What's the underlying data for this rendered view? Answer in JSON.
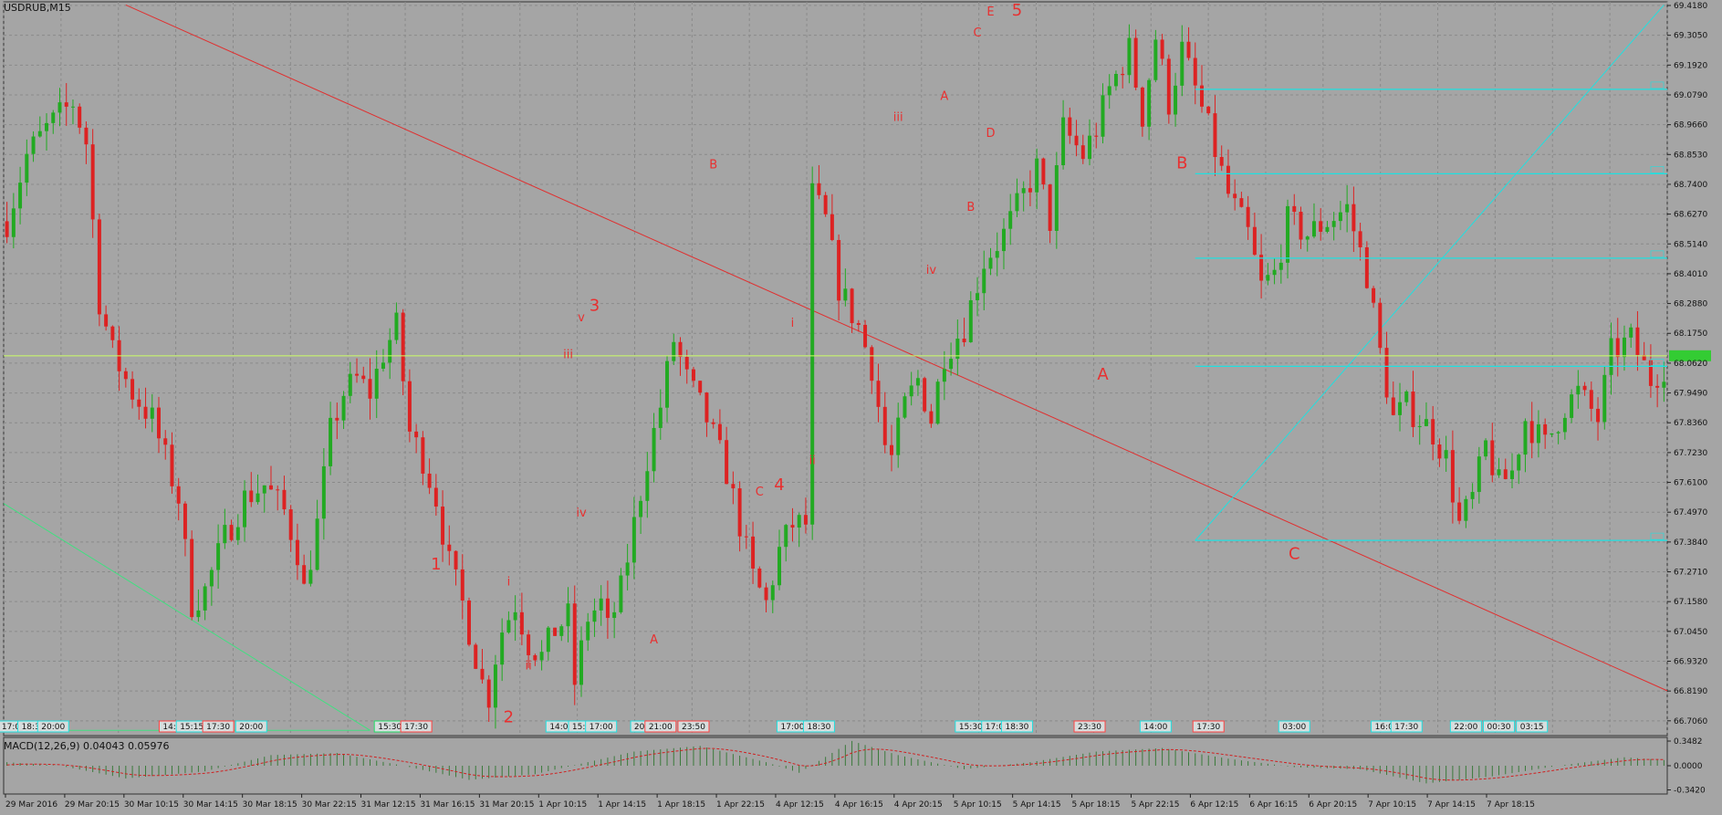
{
  "window": {
    "symbol_label": "USDRUB,M15",
    "indicator_label": "MACD(12,26,9) 0.04043 0.05976"
  },
  "colors": {
    "background": "#a5a5a5",
    "grid": "#8a8a8a",
    "bull": "#22aa22",
    "bear": "#dd2222",
    "trendline": "#e03030",
    "channel": "#20e0e0",
    "support": "#40e080",
    "bid_line": "#ccff66",
    "price_tag": "#33cc33",
    "wave_label": "#e83030"
  },
  "chart_data": [
    {
      "type": "candlestick",
      "title": "USDRUB,M15",
      "ylim": [
        66.65,
        69.418
      ],
      "y_ticks": [
        "69.4180",
        "69.3050",
        "69.1920",
        "69.0790",
        "68.9660",
        "68.8530",
        "68.7400",
        "68.6270",
        "68.5140",
        "68.4010",
        "68.2880",
        "68.1750",
        "68.0620",
        "67.9490",
        "67.8360",
        "67.7230",
        "67.6100",
        "67.4970",
        "67.3840",
        "67.2710",
        "67.1580",
        "67.0450",
        "66.9320",
        "66.8190",
        "66.7060"
      ],
      "x_ticks": [
        "29 Mar 2016",
        "29 Mar 20:15",
        "30 Mar 10:15",
        "30 Mar 14:15",
        "30 Mar 18:15",
        "30 Mar 22:15",
        "31 Mar 12:15",
        "31 Mar 16:15",
        "31 Mar 20:15",
        "1 Apr 10:15",
        "1 Apr 14:15",
        "1 Apr 18:15",
        "1 Apr 22:15",
        "4 Apr 12:15",
        "4 Apr 16:15",
        "4 Apr 20:15",
        "5 Apr 10:15",
        "5 Apr 14:15",
        "5 Apr 18:15",
        "5 Apr 22:15",
        "6 Apr 12:15",
        "6 Apr 16:15",
        "6 Apr 20:15",
        "7 Apr 10:15",
        "7 Apr 14:15",
        "7 Apr 18:15"
      ],
      "current_price": 68.09,
      "price_path": [
        [
          0,
          68.6
        ],
        [
          3,
          68.85
        ],
        [
          6,
          68.95
        ],
        [
          10,
          69.05
        ],
        [
          12,
          68.9
        ],
        [
          14,
          68.3
        ],
        [
          16,
          68.1
        ],
        [
          19,
          67.95
        ],
        [
          22,
          67.85
        ],
        [
          26,
          67.55
        ],
        [
          28,
          67.15
        ],
        [
          30,
          67.2
        ],
        [
          33,
          67.4
        ],
        [
          36,
          67.55
        ],
        [
          39,
          67.6
        ],
        [
          42,
          67.5
        ],
        [
          44,
          67.35
        ],
        [
          45,
          67.2
        ],
        [
          47,
          67.45
        ],
        [
          49,
          67.8
        ],
        [
          51,
          67.95
        ],
        [
          53,
          68.0
        ],
        [
          55,
          67.95
        ],
        [
          57,
          68.1
        ],
        [
          59,
          68.2
        ],
        [
          60,
          68.0
        ],
        [
          61,
          67.8
        ],
        [
          63,
          67.7
        ],
        [
          65,
          67.55
        ],
        [
          67,
          67.3
        ],
        [
          69,
          67.15
        ],
        [
          71,
          66.95
        ],
        [
          72,
          66.85
        ],
        [
          73,
          66.8
        ],
        [
          74,
          66.95
        ],
        [
          75,
          67.05
        ],
        [
          77,
          67.15
        ],
        [
          79,
          67.0
        ],
        [
          81,
          66.95
        ],
        [
          83,
          67.05
        ],
        [
          85,
          67.1
        ],
        [
          86,
          66.85
        ],
        [
          88,
          67.1
        ],
        [
          90,
          67.15
        ],
        [
          91,
          67.05
        ],
        [
          93,
          67.2
        ],
        [
          95,
          67.45
        ],
        [
          97,
          67.7
        ],
        [
          99,
          67.9
        ],
        [
          101,
          68.15
        ],
        [
          103,
          68.0
        ],
        [
          106,
          67.85
        ],
        [
          109,
          67.65
        ],
        [
          111,
          67.45
        ],
        [
          113,
          67.25
        ],
        [
          115,
          67.15
        ],
        [
          117,
          67.35
        ],
        [
          119,
          67.45
        ],
        [
          121,
          67.45
        ],
        [
          122,
          68.7
        ],
        [
          124,
          68.6
        ],
        [
          126,
          68.35
        ],
        [
          129,
          68.2
        ],
        [
          131,
          68.05
        ],
        [
          133,
          67.75
        ],
        [
          134,
          67.7
        ],
        [
          136,
          67.9
        ],
        [
          138,
          68.0
        ],
        [
          140,
          67.85
        ],
        [
          142,
          68.1
        ],
        [
          145,
          68.2
        ],
        [
          148,
          68.45
        ],
        [
          151,
          68.55
        ],
        [
          154,
          68.7
        ],
        [
          156,
          68.8
        ],
        [
          158,
          68.6
        ],
        [
          160,
          68.95
        ],
        [
          163,
          68.85
        ],
        [
          165,
          68.95
        ],
        [
          167,
          69.1
        ],
        [
          170,
          69.25
        ],
        [
          172,
          69.0
        ],
        [
          174,
          69.3
        ],
        [
          176,
          69.05
        ],
        [
          178,
          69.25
        ],
        [
          180,
          69.1
        ],
        [
          182,
          68.95
        ],
        [
          185,
          68.7
        ],
        [
          188,
          68.55
        ],
        [
          190,
          68.35
        ],
        [
          192,
          68.4
        ],
        [
          194,
          68.6
        ],
        [
          197,
          68.55
        ],
        [
          200,
          68.6
        ],
        [
          203,
          68.65
        ],
        [
          206,
          68.4
        ],
        [
          208,
          68.1
        ],
        [
          210,
          67.85
        ],
        [
          212,
          67.9
        ],
        [
          214,
          67.85
        ],
        [
          216,
          67.8
        ],
        [
          218,
          67.7
        ],
        [
          220,
          67.45
        ],
        [
          222,
          67.55
        ],
        [
          224,
          67.75
        ],
        [
          226,
          67.6
        ],
        [
          228,
          67.65
        ],
        [
          230,
          67.85
        ],
        [
          233,
          67.75
        ],
        [
          236,
          67.9
        ],
        [
          238,
          67.95
        ],
        [
          241,
          67.85
        ],
        [
          243,
          68.1
        ],
        [
          246,
          68.15
        ],
        [
          249,
          68.0
        ],
        [
          251,
          68.05
        ]
      ],
      "n_bars": 252
    },
    {
      "type": "macd",
      "title": "MACD(12,26,9) 0.04043 0.05976",
      "ylim": [
        -0.4,
        0.4
      ],
      "y_ticks": [
        "0.3482",
        "0.0000",
        "-0.3420"
      ],
      "bump_path": [
        [
          0,
          0.05
        ],
        [
          8,
          0.0
        ],
        [
          18,
          -0.18
        ],
        [
          30,
          -0.08
        ],
        [
          40,
          0.15
        ],
        [
          50,
          0.18
        ],
        [
          60,
          0.0
        ],
        [
          70,
          -0.2
        ],
        [
          80,
          -0.12
        ],
        [
          95,
          0.2
        ],
        [
          105,
          0.28
        ],
        [
          115,
          0.05
        ],
        [
          120,
          -0.1
        ],
        [
          128,
          0.35
        ],
        [
          135,
          0.15
        ],
        [
          145,
          -0.05
        ],
        [
          155,
          0.05
        ],
        [
          165,
          0.2
        ],
        [
          175,
          0.25
        ],
        [
          185,
          0.1
        ],
        [
          195,
          -0.02
        ],
        [
          205,
          -0.05
        ],
        [
          215,
          -0.25
        ],
        [
          225,
          -0.15
        ],
        [
          235,
          0.0
        ],
        [
          245,
          0.12
        ],
        [
          251,
          0.08
        ]
      ]
    }
  ],
  "time_tags": [
    {
      "text": "17:00",
      "color": "cyan",
      "bar": 1
    },
    {
      "text": "18:30",
      "color": "cyan",
      "bar": 4
    },
    {
      "text": "20:00",
      "color": "cyan",
      "bar": 7
    },
    {
      "text": "14:0",
      "color": "red",
      "bar": 25
    },
    {
      "text": "15:15",
      "color": "cyan",
      "bar": 28
    },
    {
      "text": "17:30",
      "color": "red",
      "bar": 32
    },
    {
      "text": "20:00",
      "color": "cyan",
      "bar": 37
    },
    {
      "text": "15:30",
      "color": "green",
      "bar": 58
    },
    {
      "text": "17:30",
      "color": "red",
      "bar": 62
    },
    {
      "text": "14:00",
      "color": "cyan",
      "bar": 84
    },
    {
      "text": "15:3",
      "color": "cyan",
      "bar": 87
    },
    {
      "text": "17:00",
      "color": "cyan",
      "bar": 90
    },
    {
      "text": "20:",
      "color": "cyan",
      "bar": 96
    },
    {
      "text": "21:00",
      "color": "red",
      "bar": 99
    },
    {
      "text": "23:50",
      "color": "red",
      "bar": 104
    },
    {
      "text": "17:00",
      "color": "cyan",
      "bar": 119
    },
    {
      "text": "18:30",
      "color": "cyan",
      "bar": 123
    },
    {
      "text": "15:30",
      "color": "cyan",
      "bar": 146
    },
    {
      "text": "17:00",
      "color": "cyan",
      "bar": 150
    },
    {
      "text": "18:30",
      "color": "cyan",
      "bar": 153
    },
    {
      "text": "23:30",
      "color": "red",
      "bar": 164
    },
    {
      "text": "14:00",
      "color": "cyan",
      "bar": 174
    },
    {
      "text": "17:30",
      "color": "red",
      "bar": 182
    },
    {
      "text": "03:00",
      "color": "cyan",
      "bar": 195
    },
    {
      "text": "16:00",
      "color": "cyan",
      "bar": 209
    },
    {
      "text": "17:30",
      "color": "cyan",
      "bar": 212
    },
    {
      "text": "22:00",
      "color": "cyan",
      "bar": 221
    },
    {
      "text": "00:30",
      "color": "cyan",
      "bar": 226
    },
    {
      "text": "03:15",
      "color": "cyan",
      "bar": 231
    }
  ],
  "wave_labels": [
    {
      "text": "1",
      "bar": 65,
      "price": 67.28,
      "big": true
    },
    {
      "text": "2",
      "bar": 76,
      "price": 66.7,
      "big": true
    },
    {
      "text": "3",
      "bar": 89,
      "price": 68.26,
      "big": true
    },
    {
      "text": "4",
      "bar": 117,
      "price": 67.58,
      "big": true
    },
    {
      "text": "5",
      "bar": 153,
      "price": 69.38,
      "big": true
    },
    {
      "text": "i",
      "bar": 76,
      "price": 67.22,
      "big": false
    },
    {
      "text": "ii",
      "bar": 79,
      "price": 66.9,
      "big": false
    },
    {
      "text": "iii",
      "bar": 85,
      "price": 68.08,
      "big": false
    },
    {
      "text": "iv",
      "bar": 87,
      "price": 67.48,
      "big": false
    },
    {
      "text": "v",
      "bar": 87,
      "price": 68.22,
      "big": false
    },
    {
      "text": "i",
      "bar": 119,
      "price": 68.2,
      "big": false
    },
    {
      "text": "ii",
      "bar": 122,
      "price": 67.68,
      "big": false
    },
    {
      "text": "iii",
      "bar": 135,
      "price": 68.98,
      "big": false
    },
    {
      "text": "iv",
      "bar": 140,
      "price": 68.4,
      "big": false
    },
    {
      "text": "A",
      "bar": 98,
      "price": 67.0,
      "big": false
    },
    {
      "text": "B",
      "bar": 107,
      "price": 68.8,
      "big": false
    },
    {
      "text": "C",
      "bar": 114,
      "price": 67.56,
      "big": false
    },
    {
      "text": "A",
      "bar": 142,
      "price": 69.06,
      "big": false
    },
    {
      "text": "B",
      "bar": 146,
      "price": 68.64,
      "big": false
    },
    {
      "text": "C",
      "bar": 147,
      "price": 69.3,
      "big": false
    },
    {
      "text": "D",
      "bar": 149,
      "price": 68.92,
      "big": false
    },
    {
      "text": "E",
      "bar": 149,
      "price": 69.38,
      "big": false
    },
    {
      "text": "A",
      "bar": 166,
      "price": 68.0,
      "big": true
    },
    {
      "text": "B",
      "bar": 178,
      "price": 68.8,
      "big": true
    },
    {
      "text": "C",
      "bar": 195,
      "price": 67.32,
      "big": true
    }
  ]
}
